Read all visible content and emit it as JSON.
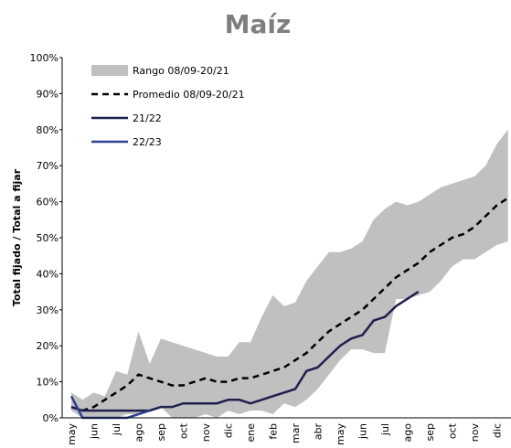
{
  "chart_data": {
    "type": "line",
    "title": "Maíz",
    "ylabel": "Total fijado / Total a fijar",
    "categories": [
      "may",
      null,
      "jun",
      null,
      "jul",
      null,
      "ago",
      null,
      "sep",
      null,
      "oct",
      null,
      "nov",
      null,
      "dic",
      null,
      "ene",
      null,
      "feb",
      null,
      "mar",
      null,
      "abr",
      null,
      "may",
      null,
      "jun",
      null,
      "jul",
      null,
      "ago",
      null,
      "sep",
      null,
      "oct",
      null,
      "nov",
      null,
      "dic",
      null
    ],
    "ylim": [
      0,
      100
    ],
    "yticks": [
      {
        "value": 0,
        "label": "0%"
      },
      {
        "value": 10,
        "label": "10%"
      },
      {
        "value": 20,
        "label": "20%"
      },
      {
        "value": 30,
        "label": "30%"
      },
      {
        "value": 40,
        "label": "40%"
      },
      {
        "value": 50,
        "label": "50%"
      },
      {
        "value": 60,
        "label": "60%"
      },
      {
        "value": 70,
        "label": "70%"
      },
      {
        "value": 80,
        "label": "80%"
      },
      {
        "value": 90,
        "label": "90%"
      },
      {
        "value": 100,
        "label": "100%"
      }
    ],
    "series": [
      {
        "name": "Rango 08/09-20/21",
        "color": "#c0c0c0",
        "style": "band",
        "upper": [
          7,
          5,
          7,
          6,
          13,
          12,
          24,
          15,
          22,
          21,
          20,
          19,
          18,
          17,
          17,
          21,
          21,
          28,
          34,
          31,
          32,
          38,
          42,
          46,
          46,
          47,
          49,
          55,
          58,
          60,
          59,
          60,
          62,
          64,
          65,
          66,
          67,
          70,
          76,
          80
        ],
        "lower": [
          2,
          0,
          0,
          0,
          0,
          1,
          1,
          2,
          3,
          0,
          0,
          0,
          1,
          0,
          2,
          1,
          2,
          2,
          1,
          4,
          3,
          5,
          8,
          12,
          16,
          19,
          19,
          18,
          18,
          33,
          33,
          34,
          35,
          38,
          42,
          44,
          44,
          46,
          48,
          49
        ]
      },
      {
        "name": "Promedio 08/09-20/21",
        "color": "#000000",
        "style": "dashed",
        "values": [
          3,
          2,
          3,
          5,
          7,
          9,
          12,
          11,
          10,
          9,
          9,
          10,
          11,
          10,
          10,
          11,
          11,
          12,
          13,
          14,
          16,
          18,
          21,
          24,
          26,
          28,
          30,
          33,
          36,
          39,
          41,
          43,
          46,
          48,
          50,
          51,
          53,
          56,
          59,
          61
        ]
      },
      {
        "name": "21/22",
        "color": "#1f1f4f",
        "style": "solid",
        "values": [
          3,
          2,
          2,
          2,
          2,
          2,
          2,
          2,
          3,
          3,
          4,
          4,
          4,
          4,
          5,
          5,
          4,
          5,
          6,
          7,
          8,
          13,
          14,
          17,
          20,
          22,
          23,
          27,
          28,
          31,
          33,
          35,
          null,
          null,
          null,
          null,
          null,
          null,
          null,
          null
        ]
      },
      {
        "name": "22/23",
        "color": "#2e3f8f",
        "style": "solid",
        "values": [
          6,
          0,
          0,
          0,
          0,
          0,
          1,
          2,
          null,
          null,
          null,
          null,
          null,
          null,
          null,
          null,
          null,
          null,
          null,
          null,
          null,
          null,
          null,
          null,
          null,
          null,
          null,
          null,
          null,
          null,
          null,
          null,
          null,
          null,
          null,
          null,
          null,
          null,
          null,
          null
        ]
      }
    ]
  }
}
